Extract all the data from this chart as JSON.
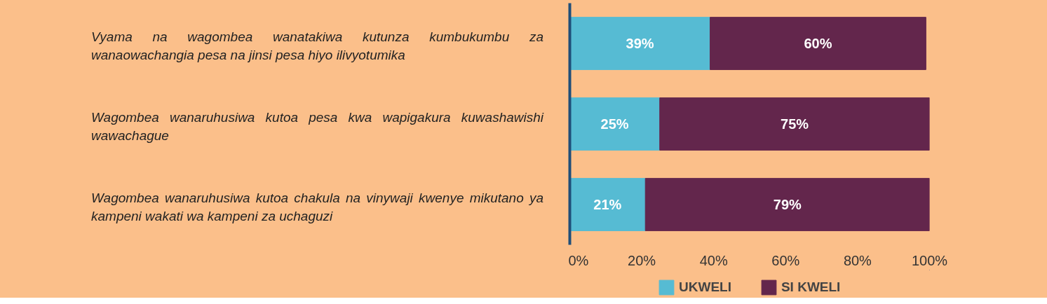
{
  "chart_data": {
    "type": "bar",
    "orientation": "horizontal",
    "stacked": true,
    "categories": [
      "Vyama na wagombea wanatakiwa kutunza kumbukumbu za wanaowachangia pesa na jinsi pesa hiyo ilivyotumika",
      "Wagombea wanaruhusiwa kutoa pesa kwa wapigakura kuwashawishi wawachague",
      "Wagombea wanaruhusiwa kutoa chakula na vinywaji kwenye mikutano ya kampeni wakati wa kampeni za uchaguzi"
    ],
    "series": [
      {
        "name": "UKWELI",
        "color": "#56bbd3",
        "values": [
          39,
          25,
          21
        ],
        "value_labels": [
          "39%",
          "25%",
          "21%"
        ]
      },
      {
        "name": "SI KWELI",
        "color": "#63264c",
        "values": [
          60,
          75,
          79
        ],
        "value_labels": [
          "60%",
          "75%",
          "79%"
        ]
      }
    ],
    "xlim": [
      0,
      100
    ],
    "xticks": [
      {
        "value": 0,
        "label": "0%"
      },
      {
        "value": 20,
        "label": "20%"
      },
      {
        "value": 40,
        "label": "40%"
      },
      {
        "value": 60,
        "label": "60%"
      },
      {
        "value": 80,
        "label": "80%"
      },
      {
        "value": 100,
        "label": "100%"
      }
    ],
    "grid": false,
    "legend": "bottom"
  }
}
